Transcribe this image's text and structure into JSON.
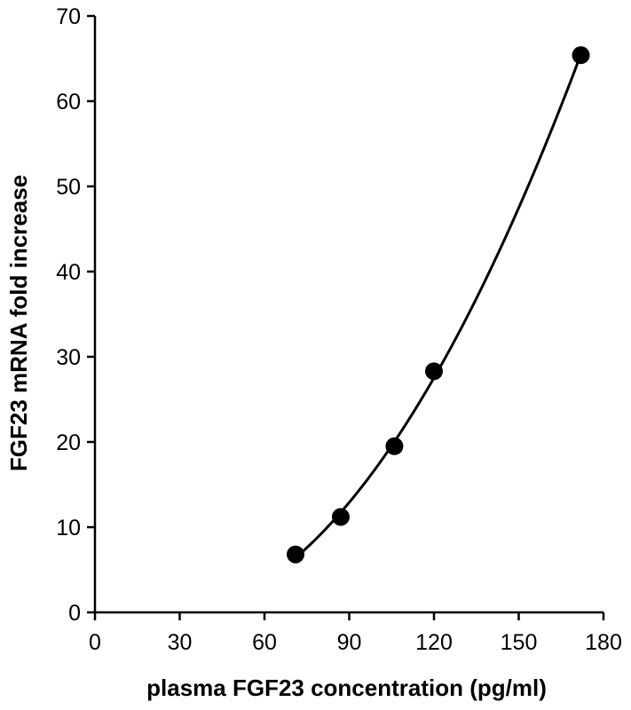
{
  "chart_data": {
    "type": "scatter",
    "title": "",
    "xlabel": "plasma FGF23 concentration (pg/ml)",
    "ylabel": "FGF23 mRNA fold increase",
    "xlim": [
      0,
      180
    ],
    "ylim": [
      0,
      70
    ],
    "x_ticks": [
      0,
      30,
      60,
      90,
      120,
      150,
      180
    ],
    "y_ticks": [
      0,
      10,
      20,
      30,
      40,
      50,
      60,
      70
    ],
    "grid": false,
    "legend": "none",
    "point_color": "#000000",
    "series": [
      {
        "points": [
          {
            "x": 71,
            "y": 6.8
          },
          {
            "x": 87,
            "y": 11.2
          },
          {
            "x": 106,
            "y": 19.5
          },
          {
            "x": 120,
            "y": 28.3
          },
          {
            "x": 172,
            "y": 65.4
          }
        ]
      }
    ],
    "fit": {
      "type": "smooth-curve",
      "x_range": [
        71,
        172
      ]
    }
  }
}
